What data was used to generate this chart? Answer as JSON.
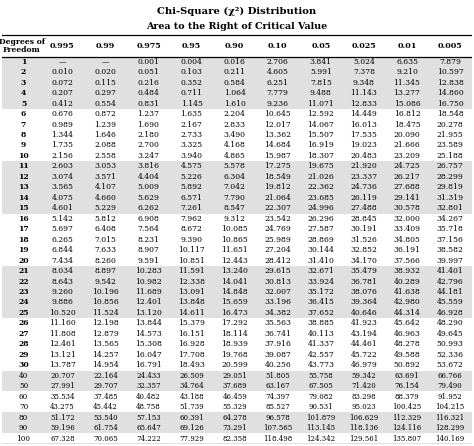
{
  "title": "Chi-Square (χ²) Distribution",
  "subtitle": "Area to the Right of Critical Value",
  "col_headers": [
    "0.995",
    "0.99",
    "0.975",
    "0.95",
    "0.90",
    "0.10",
    "0.05",
    "0.025",
    "0.01",
    "0.005"
  ],
  "row_labels": [
    "1",
    "2",
    "3",
    "4",
    "5",
    "6",
    "7",
    "8",
    "9",
    "10",
    "11",
    "12",
    "13",
    "14",
    "15",
    "16",
    "17",
    "18",
    "19",
    "20",
    "21",
    "22",
    "23",
    "24",
    "25",
    "26",
    "27",
    "28",
    "29",
    "30",
    "40",
    "50",
    "60",
    "70",
    "80",
    "90",
    "100"
  ],
  "table_data": [
    [
      "—",
      "—",
      "0.001",
      "0.004",
      "0.016",
      "2.706",
      "3.841",
      "5.024",
      "6.635",
      "7.879"
    ],
    [
      "0.010",
      "0.020",
      "0.051",
      "0.103",
      "0.211",
      "4.605",
      "5.991",
      "7.378",
      "9.210",
      "10.597"
    ],
    [
      "0.072",
      "0.115",
      "0.216",
      "0.352",
      "0.584",
      "6.251",
      "7.815",
      "9.348",
      "11.345",
      "12.838"
    ],
    [
      "0.207",
      "0.297",
      "0.484",
      "0.711",
      "1.064",
      "7.779",
      "9.488",
      "11.143",
      "13.277",
      "14.860"
    ],
    [
      "0.412",
      "0.554",
      "0.831",
      "1.145",
      "1.610",
      "9.236",
      "11.071",
      "12.833",
      "15.086",
      "16.750"
    ],
    [
      "0.676",
      "0.872",
      "1.237",
      "1.635",
      "2.204",
      "10.645",
      "12.592",
      "14.449",
      "16.812",
      "18.548"
    ],
    [
      "0.989",
      "1.239",
      "1.690",
      "2.167",
      "2.833",
      "12.017",
      "14.067",
      "16.013",
      "18.475",
      "20.278"
    ],
    [
      "1.344",
      "1.646",
      "2.180",
      "2.733",
      "3.490",
      "13.362",
      "15.507",
      "17.535",
      "20.090",
      "21.955"
    ],
    [
      "1.735",
      "2.088",
      "2.700",
      "3.325",
      "4.168",
      "14.684",
      "16.919",
      "19.023",
      "21.666",
      "23.589"
    ],
    [
      "2.156",
      "2.558",
      "3.247",
      "3.940",
      "4.865",
      "15.987",
      "18.307",
      "20.483",
      "23.209",
      "25.188"
    ],
    [
      "2.603",
      "3.053",
      "3.816",
      "4.575",
      "5.578",
      "17.275",
      "19.675",
      "21.920",
      "24.725",
      "26.757"
    ],
    [
      "3.074",
      "3.571",
      "4.404",
      "5.226",
      "6.304",
      "18.549",
      "21.026",
      "23.337",
      "26.217",
      "28.299"
    ],
    [
      "3.565",
      "4.107",
      "5.009",
      "5.892",
      "7.042",
      "19.812",
      "22.362",
      "24.736",
      "27.688",
      "29.819"
    ],
    [
      "4.075",
      "4.660",
      "5.629",
      "6.571",
      "7.790",
      "21.064",
      "23.685",
      "26.119",
      "29.141",
      "31.319"
    ],
    [
      "4.601",
      "5.229",
      "6.262",
      "7.261",
      "8.547",
      "22.307",
      "24.996",
      "27.488",
      "30.578",
      "32.801"
    ],
    [
      "5.142",
      "5.812",
      "6.908",
      "7.962",
      "9.312",
      "23.542",
      "26.296",
      "28.845",
      "32.000",
      "34.267"
    ],
    [
      "5.697",
      "6.408",
      "7.564",
      "8.672",
      "10.085",
      "24.769",
      "27.587",
      "30.191",
      "33.409",
      "35.718"
    ],
    [
      "6.265",
      "7.015",
      "8.231",
      "9.390",
      "10.865",
      "25.989",
      "28.869",
      "31.526",
      "34.805",
      "37.156"
    ],
    [
      "6.844",
      "7.633",
      "8.907",
      "10.117",
      "11.651",
      "27.204",
      "30.144",
      "32.852",
      "36.191",
      "38.582"
    ],
    [
      "7.434",
      "8.260",
      "9.591",
      "10.851",
      "12.443",
      "28.412",
      "31.410",
      "34.170",
      "37.566",
      "39.997"
    ],
    [
      "8.034",
      "8.897",
      "10.283",
      "11.591",
      "13.240",
      "29.615",
      "32.671",
      "35.479",
      "38.932",
      "41.401"
    ],
    [
      "8.643",
      "9.542",
      "10.982",
      "12.338",
      "14.041",
      "30.813",
      "33.924",
      "36.781",
      "40.289",
      "42.796"
    ],
    [
      "9.260",
      "10.196",
      "11.689",
      "13.091",
      "14.848",
      "32.007",
      "35.172",
      "38.076",
      "41.638",
      "44.181"
    ],
    [
      "9.886",
      "10.856",
      "12.401",
      "13.848",
      "15.659",
      "33.196",
      "36.415",
      "39.364",
      "42.980",
      "45.559"
    ],
    [
      "10.520",
      "11.524",
      "13.120",
      "14.611",
      "16.473",
      "34.382",
      "37.652",
      "40.646",
      "44.314",
      "46.928"
    ],
    [
      "11.160",
      "12.198",
      "13.844",
      "15.379",
      "17.292",
      "35.563",
      "38.885",
      "41.923",
      "45.642",
      "48.290"
    ],
    [
      "11.808",
      "12.879",
      "14.573",
      "16.151",
      "18.114",
      "36.741",
      "40.113",
      "43.194",
      "46.963",
      "49.645"
    ],
    [
      "12.461",
      "13.565",
      "15.308",
      "16.928",
      "18.939",
      "37.916",
      "41.337",
      "44.461",
      "48.278",
      "50.993"
    ],
    [
      "13.121",
      "14.257",
      "16.047",
      "17.708",
      "19.768",
      "39.087",
      "42.557",
      "45.722",
      "49.588",
      "52.336"
    ],
    [
      "13.787",
      "14.954",
      "16.791",
      "18.493",
      "20.599",
      "40.256",
      "43.773",
      "46.979",
      "50.892",
      "53.672"
    ],
    [
      "20.707",
      "22.164",
      "24.433",
      "26.509",
      "29.051",
      "51.805",
      "55.758",
      "59.342",
      "63.691",
      "66.766"
    ],
    [
      "27.991",
      "29.707",
      "32.357",
      "34.764",
      "37.689",
      "63.167",
      "67.505",
      "71.420",
      "76.154",
      "79.490"
    ],
    [
      "35.534",
      "37.485",
      "40.482",
      "43.188",
      "46.459",
      "74.397",
      "79.082",
      "83.298",
      "88.379",
      "91.952"
    ],
    [
      "43.275",
      "45.442",
      "48.758",
      "51.739",
      "55.329",
      "85.527",
      "90.531",
      "95.023",
      "100.425",
      "104.215"
    ],
    [
      "51.172",
      "53.540",
      "57.153",
      "60.391",
      "64.278",
      "96.578",
      "101.879",
      "106.629",
      "112.329",
      "116.321"
    ],
    [
      "59.196",
      "61.754",
      "65.647",
      "69.126",
      "73.291",
      "107.565",
      "113.145",
      "118.136",
      "124.116",
      "128.299"
    ],
    [
      "67.328",
      "70.065",
      "74.222",
      "77.929",
      "82.358",
      "118.498",
      "124.342",
      "129.561",
      "135.807",
      "140.169"
    ]
  ],
  "bg_light": "#e0e0e0",
  "bg_white": "#ffffff",
  "figsize": [
    4.74,
    4.46
  ],
  "dpi": 100
}
